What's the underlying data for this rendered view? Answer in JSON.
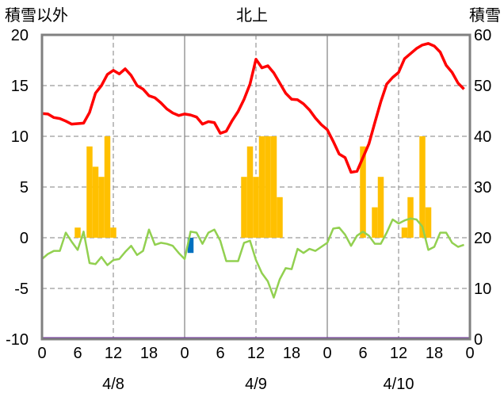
{
  "chart_data": {
    "type": "bar+line",
    "title": "北上",
    "y_left_label": "積雪以外",
    "y_right_label": "積雪",
    "y_left_lim": [
      -10,
      20
    ],
    "y_right_lim": [
      0,
      60
    ],
    "y_left_ticks": [
      "20",
      "15",
      "10",
      "5",
      "0",
      "-5",
      "-10"
    ],
    "y_right_ticks": [
      "60",
      "50",
      "40",
      "30",
      "20",
      "10",
      "0"
    ],
    "x_tick_labels": [
      "0",
      "6",
      "12",
      "18",
      "0",
      "6",
      "12",
      "18",
      "0",
      "6",
      "12",
      "18",
      "0"
    ],
    "x_tick_hours": [
      0,
      6,
      12,
      18,
      24,
      30,
      36,
      42,
      48,
      54,
      60,
      66,
      72
    ],
    "date_labels": [
      {
        "label": "4/8",
        "hour": 12
      },
      {
        "label": "4/9",
        "hour": 36
      },
      {
        "label": "4/10",
        "hour": 60
      }
    ],
    "grid": "dashed vertical at 12h, solid vertical at day boundaries, dashed horizontal",
    "colors": {
      "temperature": "#ff0000",
      "precip": "#ffc000",
      "wind_negative": "#0070c0",
      "green_series": "#92d050",
      "snow_depth": "#7030a0",
      "grid": "#808080"
    },
    "series": [
      {
        "unit_axis": "right",
        "x": [
          0,
          1,
          2,
          3,
          4,
          5,
          6,
          7,
          8,
          9,
          10,
          11,
          12,
          13,
          14,
          15,
          16,
          17,
          18,
          19,
          20,
          21,
          22,
          23,
          24,
          25,
          26,
          27,
          28,
          29,
          30,
          31,
          32,
          33,
          34,
          35,
          36,
          37,
          38,
          39,
          40,
          41,
          42,
          43,
          44,
          45,
          46,
          47,
          48,
          49,
          50,
          51,
          52,
          53,
          54,
          55,
          56,
          57,
          58,
          59,
          60,
          61,
          62,
          63,
          64,
          65,
          66,
          67,
          68,
          69,
          70,
          71
        ],
        "values": [
          44.5,
          44.4,
          43.7,
          43.5,
          43.0,
          42.4,
          42.5,
          42.6,
          44.7,
          48.5,
          50.0,
          52.2,
          53.0,
          52.3,
          53.3,
          52.0,
          50.0,
          49.3,
          48.0,
          47.6,
          46.6,
          45.4,
          44.6,
          44.1,
          44.4,
          44.2,
          43.8,
          42.4,
          42.9,
          42.7,
          40.6,
          41.0,
          43.1,
          44.9,
          47.3,
          50.3,
          55.2,
          53.5,
          53.9,
          52.5,
          50.5,
          48.5,
          47.3,
          47.2,
          46.4,
          45.2,
          43.6,
          42.3,
          41.3,
          39.0,
          36.5,
          35.8,
          32.9,
          33.1,
          35.8,
          38.5,
          42.7,
          46.8,
          50.3,
          51.6,
          52.6,
          55.3,
          56.3,
          57.3,
          58.0,
          58.3,
          57.8,
          56.6,
          54.0,
          52.6,
          50.5,
          49.3
        ],
        "plot_as": "red_line_temperature_on_left_scale"
      },
      {
        "x": [
          6,
          8,
          9,
          10,
          11,
          12,
          13,
          25,
          34,
          35,
          36,
          37,
          38,
          39,
          40,
          54,
          56,
          57,
          61,
          62,
          64,
          65,
          66
        ],
        "values": [
          1,
          9,
          7,
          6,
          10,
          1,
          0,
          -1.5,
          6,
          9,
          6,
          10,
          10,
          10,
          4,
          9,
          3,
          6,
          1,
          4,
          10,
          3,
          0
        ],
        "plot_as": "precipitation_bars"
      },
      {
        "x": [
          0,
          1,
          2,
          3,
          4,
          5,
          6,
          7,
          8,
          9,
          10,
          11,
          12,
          13,
          14,
          15,
          16,
          17,
          18,
          19,
          20,
          21,
          22,
          23,
          24,
          25,
          26,
          27,
          28,
          29,
          30,
          31,
          32,
          33,
          34,
          35,
          36,
          37,
          38,
          39,
          40,
          41,
          42,
          43,
          44,
          45,
          46,
          47,
          48,
          49,
          50,
          51,
          52,
          53,
          54,
          55,
          56,
          57,
          58,
          59,
          60,
          61,
          62,
          63,
          64,
          65,
          66,
          67,
          68,
          69,
          70,
          71
        ],
        "values": [
          -2.1,
          -1.6,
          -1.3,
          -1.3,
          0.5,
          -0.4,
          -1.2,
          0.6,
          -2.5,
          -2.6,
          -1.9,
          -2.7,
          -2.2,
          -2.1,
          -1.4,
          -0.8,
          -1.7,
          -1.3,
          0.8,
          -0.7,
          -0.5,
          -0.6,
          -0.8,
          -1.5,
          -2.1,
          0.6,
          0.5,
          -0.6,
          0.5,
          0.8,
          -0.3,
          -2.3,
          -2.3,
          -2.3,
          -0.5,
          -0.3,
          -2.2,
          -3.5,
          -4.3,
          -5.9,
          -4.1,
          -3.0,
          -3.1,
          -1.1,
          -1.5,
          -1.1,
          -1.3,
          -0.9,
          -0.5,
          0.9,
          1.0,
          0.3,
          -0.8,
          0.2,
          0.6,
          0.2,
          -0.6,
          -0.6,
          0.5,
          1.8,
          1.4,
          1.7,
          1.9,
          1.8,
          1.1,
          -1.2,
          -0.9,
          0.5,
          0.5,
          -0.5,
          -0.9,
          -0.7
        ],
        "plot_as": "green_line"
      },
      {
        "x": [
          0,
          71
        ],
        "values": [
          0,
          0
        ],
        "plot_as": "purple_snow_depth_right_scale"
      }
    ]
  }
}
